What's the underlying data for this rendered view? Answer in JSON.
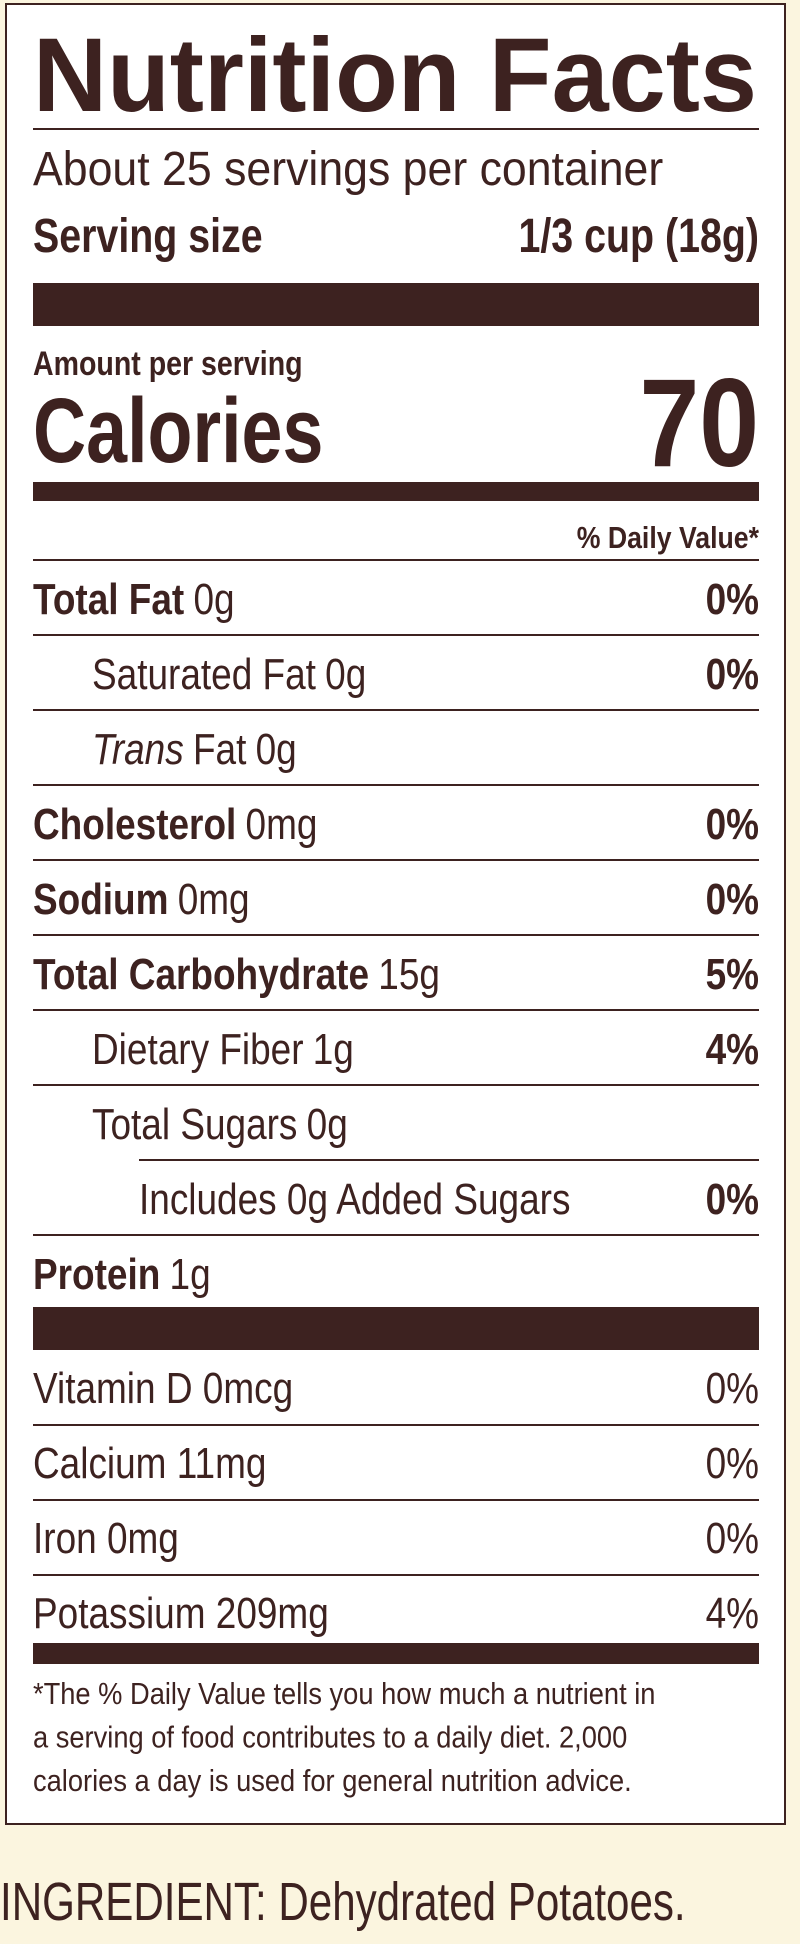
{
  "title": "Nutrition Facts",
  "servings": "About 25 servings per container",
  "serving_size": {
    "label": "Serving size",
    "value": "1/3 cup (18g)"
  },
  "amount_per_serving": "Amount per serving",
  "calories": {
    "label": "Calories",
    "value": "70"
  },
  "dv_header": "% Daily Value*",
  "nutrients": [
    {
      "name": "Total Fat",
      "amount": "0g",
      "dv": "0%",
      "level": 0
    },
    {
      "name": "Saturated Fat",
      "amount": "0g",
      "dv": "0%",
      "level": 1
    },
    {
      "prefix": "Trans",
      "name": "Fat",
      "amount": "0g",
      "level": 1
    },
    {
      "name": "Cholesterol",
      "amount": "0mg",
      "dv": "0%",
      "level": 0
    },
    {
      "name": "Sodium",
      "amount": "0mg",
      "dv": "0%",
      "level": 0
    },
    {
      "name": "Total Carbohydrate",
      "amount": "15g",
      "dv": "5%",
      "level": 0
    },
    {
      "name": "Dietary Fiber",
      "amount": "1g",
      "dv": "4%",
      "level": 1
    },
    {
      "name": "Total Sugars",
      "amount": "0g",
      "level": 1
    },
    {
      "name": "Includes 0g Added Sugars",
      "dv": "0%",
      "level": 2
    },
    {
      "name": "Protein",
      "amount": "1g",
      "level": 0
    }
  ],
  "vitamins": [
    {
      "name": "Vitamin D 0mcg",
      "dv": "0%"
    },
    {
      "name": "Calcium 11mg",
      "dv": "0%"
    },
    {
      "name": "Iron 0mg",
      "dv": "0%"
    },
    {
      "name": "Potassium 209mg",
      "dv": "4%"
    }
  ],
  "footnote": [
    "*The % Daily Value tells you how much a nutrient in",
    "a serving of food contributes to a daily diet. 2,000",
    "calories a day is used for general nutrition advice."
  ],
  "ingredients": "INGREDIENT: Dehydrated Potatoes."
}
